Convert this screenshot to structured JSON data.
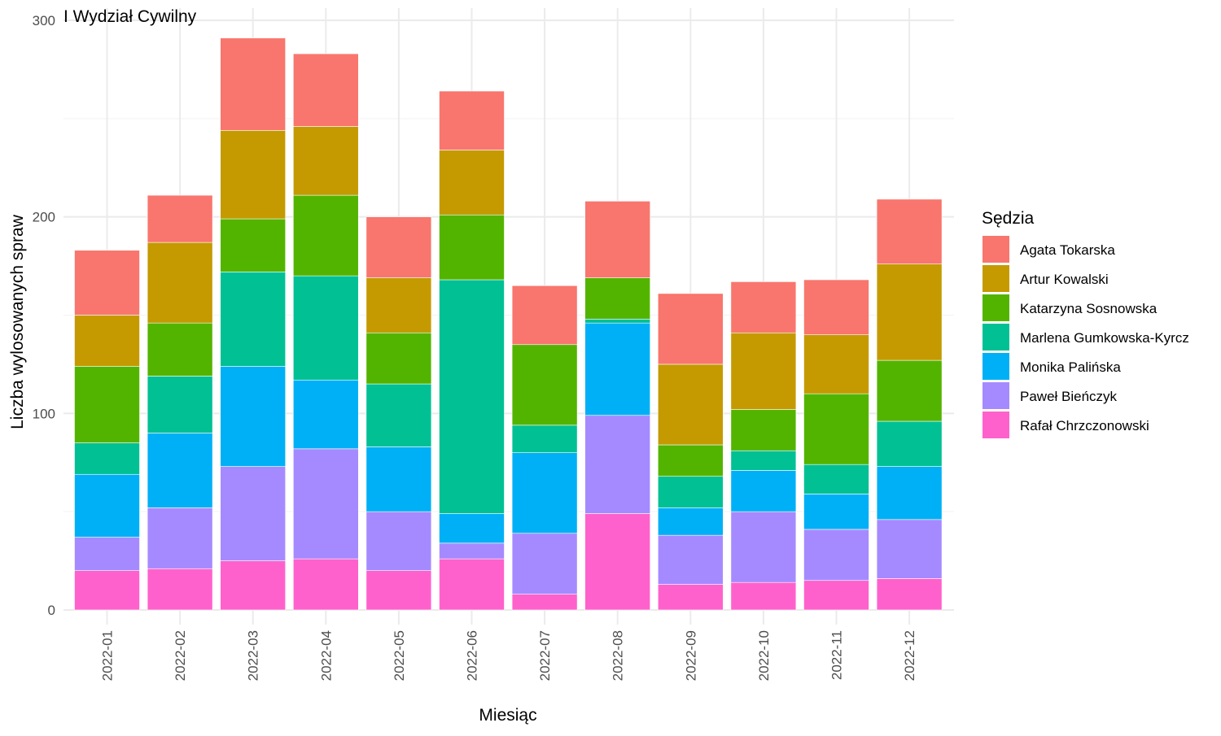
{
  "chart_data": {
    "type": "bar",
    "stacked": true,
    "title": "I Wydział Cywilny",
    "xlabel": "Miesiąc",
    "ylabel": "Liczba wylosowanych spraw",
    "ylim": [
      0,
      300
    ],
    "yticks": [
      0,
      100,
      200,
      300
    ],
    "grid": true,
    "legend_title": "Sędzia",
    "legend_position": "right",
    "categories": [
      "2022-01",
      "2022-02",
      "2022-03",
      "2022-04",
      "2022-05",
      "2022-06",
      "2022-07",
      "2022-08",
      "2022-09",
      "2022-10",
      "2022-11",
      "2022-12"
    ],
    "series": [
      {
        "name": "Rafał Chrzczonowski",
        "color": "#FF61CC",
        "values": [
          20,
          21,
          25,
          26,
          20,
          26,
          8,
          49,
          13,
          14,
          15,
          16
        ]
      },
      {
        "name": "Paweł Bieńczyk",
        "color": "#A58AFF",
        "values": [
          17,
          31,
          48,
          56,
          30,
          8,
          31,
          50,
          25,
          36,
          26,
          30
        ]
      },
      {
        "name": "Monika Palińska",
        "color": "#00B0F6",
        "values": [
          32,
          38,
          51,
          35,
          33,
          15,
          41,
          47,
          14,
          21,
          18,
          27
        ]
      },
      {
        "name": "Marlena Gumkowska-Kyrcz",
        "color": "#00C094",
        "values": [
          16,
          29,
          48,
          53,
          32,
          119,
          14,
          2,
          16,
          10,
          15,
          23
        ]
      },
      {
        "name": "Katarzyna Sosnowska",
        "color": "#53B400",
        "values": [
          39,
          27,
          27,
          41,
          26,
          33,
          41,
          21,
          16,
          21,
          36,
          31
        ]
      },
      {
        "name": "Artur Kowalski",
        "color": "#C49A00",
        "values": [
          26,
          41,
          45,
          35,
          28,
          33,
          0,
          0,
          41,
          39,
          30,
          49
        ]
      },
      {
        "name": "Agata Tokarska",
        "color": "#F8766D",
        "values": [
          33,
          24,
          47,
          37,
          31,
          30,
          30,
          39,
          36,
          26,
          28,
          33
        ]
      }
    ],
    "legend_order": [
      "Agata Tokarska",
      "Artur Kowalski",
      "Katarzyna Sosnowska",
      "Marlena Gumkowska-Kyrcz",
      "Monika Palińska",
      "Paweł Bieńczyk",
      "Rafał Chrzczonowski"
    ]
  }
}
